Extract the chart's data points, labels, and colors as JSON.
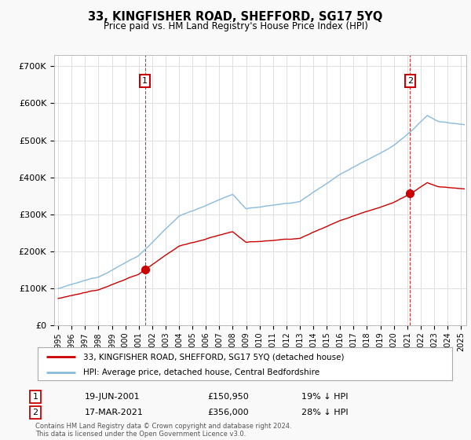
{
  "title": "33, KINGFISHER ROAD, SHEFFORD, SG17 5YQ",
  "subtitle": "Price paid vs. HM Land Registry's House Price Index (HPI)",
  "ylabel_ticks": [
    "£0",
    "£100K",
    "£200K",
    "£300K",
    "£400K",
    "£500K",
    "£600K",
    "£700K"
  ],
  "ytick_values": [
    0,
    100000,
    200000,
    300000,
    400000,
    500000,
    600000,
    700000
  ],
  "ylim": [
    0,
    730000
  ],
  "xlim_start": 1994.7,
  "xlim_end": 2025.4,
  "red_line_color": "#cc0000",
  "blue_line_color": "#88bbdd",
  "marker1_date": 2001.47,
  "marker1_value": 150950,
  "marker2_date": 2021.21,
  "marker2_value": 356000,
  "marker1_label": "19-JUN-2001",
  "marker1_price": "£150,950",
  "marker1_pct": "19% ↓ HPI",
  "marker2_label": "17-MAR-2021",
  "marker2_price": "£356,000",
  "marker2_pct": "28% ↓ HPI",
  "legend_label_red": "33, KINGFISHER ROAD, SHEFFORD, SG17 5YQ (detached house)",
  "legend_label_blue": "HPI: Average price, detached house, Central Bedfordshire",
  "footnote": "Contains HM Land Registry data © Crown copyright and database right 2024.\nThis data is licensed under the Open Government Licence v3.0.",
  "background_color": "#f9f9f9",
  "plot_bg_color": "#ffffff",
  "grid_color": "#e0e0e0"
}
